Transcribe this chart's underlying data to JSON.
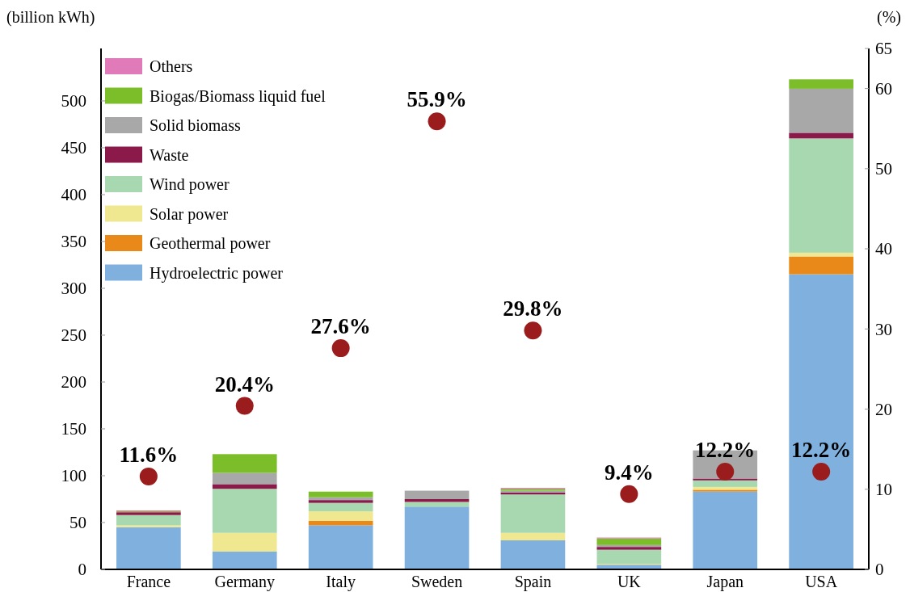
{
  "chart_data": {
    "type": "bar",
    "stacked": true,
    "ylabel": "(billion kWh)",
    "y2label": "(%)",
    "categories": [
      "France",
      "Germany",
      "Italy",
      "Sweden",
      "Spain",
      "UK",
      "Japan",
      "USA"
    ],
    "series": [
      {
        "name": "Hydroelectric power",
        "color": "#7fb0de",
        "values": [
          45,
          19,
          47,
          67,
          31,
          5,
          83,
          315
        ]
      },
      {
        "name": "Geothermal power",
        "color": "#e8891a",
        "values": [
          0,
          0,
          5,
          0,
          0,
          0,
          2,
          19
        ]
      },
      {
        "name": "Solar power",
        "color": "#f0e890",
        "values": [
          2,
          20,
          10,
          0,
          8,
          1,
          3,
          4
        ]
      },
      {
        "name": "Wind power",
        "color": "#a8d8b0",
        "values": [
          11,
          47,
          9,
          5,
          41,
          15,
          7,
          122
        ]
      },
      {
        "name": "Waste",
        "color": "#8b1a4a",
        "values": [
          3,
          5,
          3,
          3,
          2,
          3,
          2,
          6
        ]
      },
      {
        "name": "Solid biomass",
        "color": "#a8a8a8",
        "values": [
          null,
          12,
          3,
          9,
          2,
          2,
          30,
          47
        ]
      },
      {
        "name": "Biogas/Biomass liquid fuel",
        "color": "#7cbd2a",
        "values": [
          1,
          20,
          6,
          0,
          2,
          7,
          0,
          10
        ]
      },
      {
        "name": "Others",
        "color": "#e07ab8",
        "values": [
          1,
          0,
          0,
          0,
          1,
          1,
          0,
          0
        ]
      },
      {
        "type": "scatter",
        "axis": "y2",
        "color": "#9b1c1c",
        "values": [
          11.6,
          20.4,
          27.6,
          55.9,
          29.8,
          9.4,
          12.2,
          12.2
        ],
        "value_labels": [
          "11.6%",
          "20.4%",
          "27.6%",
          "55.9%",
          "29.8%",
          "9.4%",
          "12.2%",
          "12.2%"
        ]
      }
    ],
    "ylim": [
      0,
      556
    ],
    "yticks": [
      0,
      50,
      100,
      150,
      200,
      250,
      300,
      350,
      400,
      450,
      500
    ],
    "y2lim": [
      0,
      65
    ],
    "y2ticks": [
      0,
      10,
      20,
      30,
      40,
      50,
      60,
      65
    ],
    "legend": "top left",
    "marker": "circle",
    "grid": false
  }
}
